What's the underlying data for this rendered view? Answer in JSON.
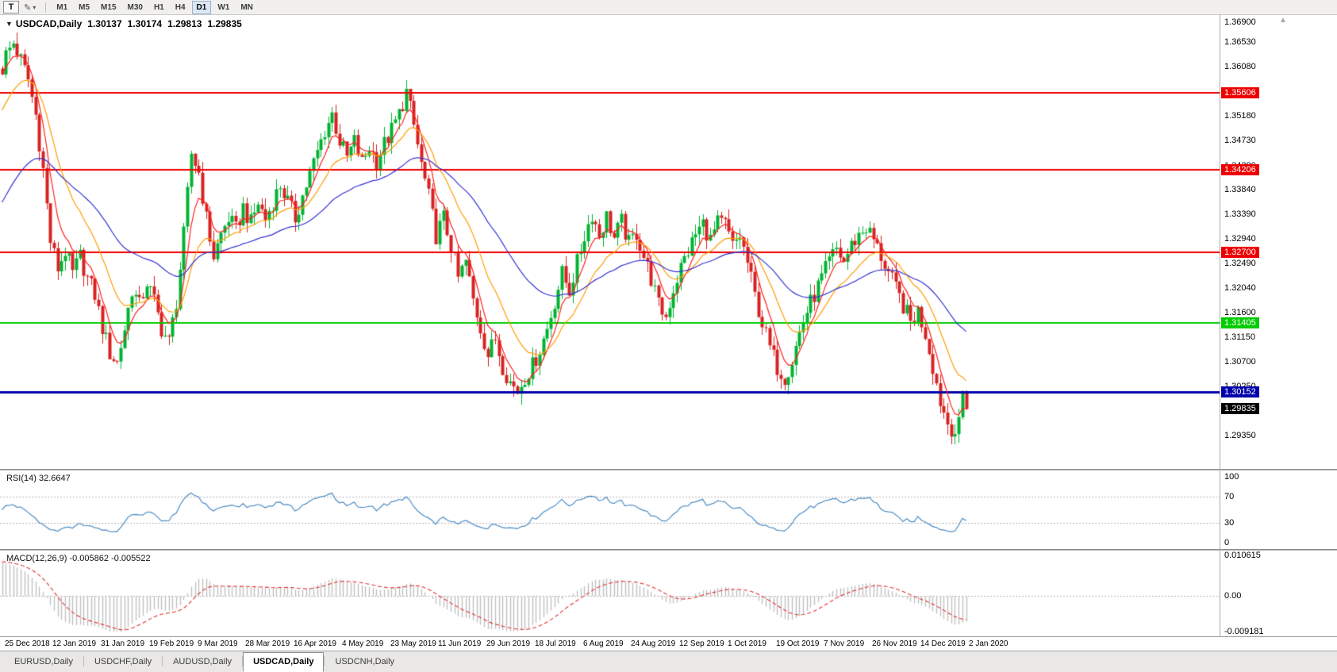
{
  "toolbar": {
    "text_button_label": "T",
    "icons": {
      "pencil": "✎",
      "dropdown": "▾"
    },
    "timeframes": [
      "M1",
      "M5",
      "M15",
      "M30",
      "H1",
      "H4",
      "D1",
      "W1",
      "MN"
    ],
    "active_timeframe": "D1"
  },
  "chart": {
    "icons": {
      "collapse": "▼",
      "scale_arrow": "▲"
    },
    "header": {
      "symbol": "USDCAD,Daily",
      "open": "1.30137",
      "high": "1.30174",
      "low": "1.29813",
      "close": "1.29835"
    },
    "y_axis_ticks": [
      "1.36900",
      "1.36530",
      "1.36080",
      "1.35630",
      "1.35180",
      "1.34730",
      "1.34280",
      "1.33840",
      "1.33390",
      "1.32940",
      "1.32490",
      "1.32040",
      "1.31600",
      "1.31150",
      "1.30700",
      "1.30250",
      "1.29800",
      "1.29350"
    ],
    "price_max": 1.3704,
    "price_min": 1.2874,
    "h_lines": [
      {
        "price": 1.35606,
        "label": "1.35606",
        "color": "#ee0000",
        "width": 2
      },
      {
        "price": 1.34206,
        "label": "1.34206",
        "color": "#ee0000",
        "width": 2
      },
      {
        "price": 1.327,
        "label": "1.32700",
        "color": "#ee0000",
        "width": 2
      },
      {
        "price": 1.31405,
        "label": "1.31405",
        "color": "#00cc00",
        "width": 2
      },
      {
        "price": 1.30152,
        "label": "1.30152",
        "color": "#0000aa",
        "width": 3
      }
    ],
    "bid_label": {
      "price": 1.29835,
      "label": "1.29835",
      "color": "#000000"
    },
    "colors": {
      "up": "#00b432",
      "down": "#d82222"
    }
  },
  "rsi_panel": {
    "label": "RSI(14) 32.6647",
    "ticks": [
      "100",
      "70",
      "30",
      "0"
    ],
    "tick_values": [
      100,
      70,
      30,
      0
    ],
    "levels": [
      70,
      30
    ],
    "line_color": "#4a8bc4"
  },
  "macd_panel": {
    "label": "MACD(12,26,9) -0.005862 -0.005522",
    "ticks": [
      "0.010615",
      "0.00",
      "-0.009181"
    ],
    "tick_values": [
      0.010615,
      0,
      -0.009181
    ],
    "range": [
      -0.009181,
      0.010615
    ]
  },
  "x_axis": {
    "candles_per_label": 13,
    "dates": [
      "25 Dec 2018",
      "12 Jan 2019",
      "31 Jan 2019",
      "19 Feb 2019",
      "9 Mar 2019",
      "28 Mar 2019",
      "16 Apr 2019",
      "4 May 2019",
      "23 May 2019",
      "11 Jun 2019",
      "29 Jun 2019",
      "18 Jul 2019",
      "6 Aug 2019",
      "24 Aug 2019",
      "12 Sep 2019",
      "1 Oct 2019",
      "19 Oct 2019",
      "7 Nov 2019",
      "26 Nov 2019",
      "14 Dec 2019",
      "2 Jan 2020"
    ]
  },
  "tabs": [
    "EURUSD,Daily",
    "USDCHF,Daily",
    "AUDUSD,Daily",
    "USDCAD,Daily",
    "USDCNH,Daily"
  ],
  "active_tab": "USDCAD,Daily",
  "chart_data": {
    "type": "candlestick",
    "symbol": "USDCAD",
    "period": "Daily",
    "candle_count": 261,
    "y_range": [
      1.2874,
      1.3704
    ],
    "last_candle": {
      "open": 1.30137,
      "high": 1.30174,
      "low": 1.29813,
      "close": 1.29835
    },
    "noise": {
      "body": 0.0017,
      "wick": 0.002
    },
    "close_path_anchors": [
      [
        0,
        1.3605
      ],
      [
        1,
        1.363
      ],
      [
        3,
        1.3652
      ],
      [
        5,
        1.362
      ],
      [
        7,
        1.3585
      ],
      [
        9,
        1.352
      ],
      [
        11,
        1.342
      ],
      [
        13,
        1.329
      ],
      [
        15,
        1.324
      ],
      [
        17,
        1.3272
      ],
      [
        19,
        1.323
      ],
      [
        21,
        1.3262
      ],
      [
        23,
        1.3222
      ],
      [
        25,
        1.3192
      ],
      [
        27,
        1.3132
      ],
      [
        29,
        1.3085
      ],
      [
        31,
        1.3068
      ],
      [
        33,
        1.313
      ],
      [
        35,
        1.3202
      ],
      [
        37,
        1.3172
      ],
      [
        39,
        1.3215
      ],
      [
        41,
        1.318
      ],
      [
        43,
        1.313
      ],
      [
        45,
        1.3105
      ],
      [
        47,
        1.318
      ],
      [
        49,
        1.33
      ],
      [
        51,
        1.345
      ],
      [
        53,
        1.3415
      ],
      [
        55,
        1.333
      ],
      [
        57,
        1.3262
      ],
      [
        59,
        1.3302
      ],
      [
        61,
        1.3332
      ],
      [
        63,
        1.331
      ],
      [
        65,
        1.3352
      ],
      [
        67,
        1.3322
      ],
      [
        69,
        1.336
      ],
      [
        71,
        1.333
      ],
      [
        73,
        1.3362
      ],
      [
        75,
        1.3392
      ],
      [
        77,
        1.3362
      ],
      [
        79,
        1.3332
      ],
      [
        81,
        1.3372
      ],
      [
        83,
        1.3412
      ],
      [
        85,
        1.3452
      ],
      [
        87,
        1.3492
      ],
      [
        89,
        1.3522
      ],
      [
        91,
        1.3472
      ],
      [
        93,
        1.3442
      ],
      [
        95,
        1.3472
      ],
      [
        97,
        1.3432
      ],
      [
        99,
        1.3462
      ],
      [
        101,
        1.3437
      ],
      [
        103,
        1.3467
      ],
      [
        105,
        1.3492
      ],
      [
        107,
        1.3522
      ],
      [
        109,
        1.3562
      ],
      [
        111,
        1.35
      ],
      [
        113,
        1.343
      ],
      [
        115,
        1.337
      ],
      [
        117,
        1.33
      ],
      [
        119,
        1.3332
      ],
      [
        121,
        1.3282
      ],
      [
        123,
        1.3222
      ],
      [
        125,
        1.3252
      ],
      [
        127,
        1.3182
      ],
      [
        129,
        1.3132
      ],
      [
        131,
        1.3082
      ],
      [
        133,
        1.3112
      ],
      [
        135,
        1.3062
      ],
      [
        137,
        1.3032
      ],
      [
        139,
        1.3016
      ],
      [
        141,
        1.3042
      ],
      [
        143,
        1.3062
      ],
      [
        145,
        1.3092
      ],
      [
        147,
        1.313
      ],
      [
        149,
        1.318
      ],
      [
        151,
        1.323
      ],
      [
        153,
        1.32
      ],
      [
        155,
        1.325
      ],
      [
        157,
        1.33
      ],
      [
        159,
        1.334
      ],
      [
        161,
        1.33
      ],
      [
        163,
        1.3335
      ],
      [
        165,
        1.3295
      ],
      [
        167,
        1.3325
      ],
      [
        169,
        1.3285
      ],
      [
        171,
        1.3305
      ],
      [
        173,
        1.3262
      ],
      [
        175,
        1.3222
      ],
      [
        177,
        1.3172
      ],
      [
        179,
        1.3152
      ],
      [
        181,
        1.3202
      ],
      [
        183,
        1.3242
      ],
      [
        185,
        1.3272
      ],
      [
        187,
        1.3302
      ],
      [
        189,
        1.3322
      ],
      [
        191,
        1.3292
      ],
      [
        193,
        1.3322
      ],
      [
        195,
        1.332
      ],
      [
        197,
        1.328
      ],
      [
        199,
        1.33
      ],
      [
        201,
        1.325
      ],
      [
        203,
        1.319
      ],
      [
        205,
        1.314
      ],
      [
        207,
        1.3095
      ],
      [
        209,
        1.306
      ],
      [
        211,
        1.3042
      ],
      [
        213,
        1.3072
      ],
      [
        215,
        1.3122
      ],
      [
        217,
        1.3162
      ],
      [
        219,
        1.3192
      ],
      [
        221,
        1.3222
      ],
      [
        223,
        1.3252
      ],
      [
        225,
        1.3275
      ],
      [
        227,
        1.3252
      ],
      [
        229,
        1.3282
      ],
      [
        231,
        1.3302
      ],
      [
        233,
        1.3315
      ],
      [
        235,
        1.3292
      ],
      [
        237,
        1.3262
      ],
      [
        239,
        1.3232
      ],
      [
        241,
        1.3202
      ],
      [
        243,
        1.3172
      ],
      [
        245,
        1.3142
      ],
      [
        247,
        1.3162
      ],
      [
        249,
        1.3122
      ],
      [
        251,
        1.3062
      ],
      [
        253,
        1.2998
      ],
      [
        255,
        1.2958
      ],
      [
        257,
        1.2942
      ],
      [
        258,
        1.2952
      ],
      [
        259,
        1.30137
      ],
      [
        260,
        1.29835
      ]
    ],
    "overlays": {
      "horizontal_lines": [
        1.35606,
        1.34206,
        1.327,
        1.31405,
        1.30152
      ],
      "moving_averages": [
        {
          "period": 6,
          "color": "#ff2020",
          "seed": null
        },
        {
          "period": 16,
          "color": "#ff9c00",
          "seed": 1.352
        },
        {
          "period": 45,
          "color": "#3232d2",
          "seed": 1.335
        }
      ]
    },
    "indicators": {
      "rsi": {
        "period": 14,
        "value": 32.6647,
        "levels": [
          70,
          30
        ],
        "seed_avg": 0.0012
      },
      "macd": {
        "fast": 12,
        "slow": 26,
        "signal": 9,
        "value": -0.005862,
        "signal_value": -0.005522,
        "left_offset": 0.0095
      }
    }
  }
}
